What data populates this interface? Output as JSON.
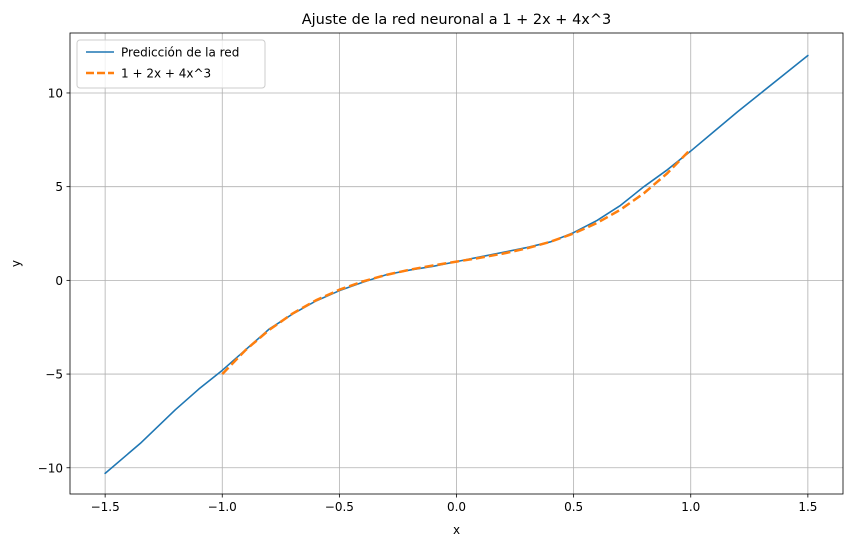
{
  "chart_data": {
    "type": "line",
    "title": "Ajuste de la red neuronal a 1 + 2x + 4x^3",
    "xlabel": "x",
    "ylabel": "y",
    "xlim": [
      -1.65,
      1.65
    ],
    "ylim": [
      -11.4,
      13.2
    ],
    "xticks": [
      -1.5,
      -1.0,
      -0.5,
      0.0,
      0.5,
      1.0,
      1.5
    ],
    "xtick_labels": [
      "−1.5",
      "−1.0",
      "−0.5",
      "0.0",
      "0.5",
      "1.0",
      "1.5"
    ],
    "yticks": [
      -10,
      -5,
      0,
      5,
      10
    ],
    "ytick_labels": [
      "−10",
      "−5",
      "0",
      "5",
      "10"
    ],
    "grid": true,
    "legend_position": "upper-left",
    "series": [
      {
        "name": "Predicción de la red",
        "color": "#1f77b4",
        "style": "solid",
        "x": [
          -1.5,
          -1.35,
          -1.2,
          -1.1,
          -1.0,
          -0.9,
          -0.8,
          -0.7,
          -0.6,
          -0.5,
          -0.4,
          -0.3,
          -0.2,
          -0.1,
          0.0,
          0.1,
          0.2,
          0.3,
          0.4,
          0.5,
          0.6,
          0.7,
          0.8,
          0.9,
          1.0,
          1.1,
          1.2,
          1.3,
          1.4,
          1.5
        ],
        "y": [
          -10.3,
          -8.7,
          -6.9,
          -5.8,
          -4.8,
          -3.7,
          -2.6,
          -1.8,
          -1.1,
          -0.55,
          -0.1,
          0.3,
          0.55,
          0.75,
          1.0,
          1.25,
          1.5,
          1.75,
          2.05,
          2.55,
          3.2,
          4.0,
          5.0,
          5.9,
          6.9,
          7.95,
          9.0,
          10.0,
          11.0,
          12.0
        ]
      },
      {
        "name": "1 + 2x + 4x^3",
        "color": "#ff7f0e",
        "style": "dashed",
        "x": [
          -1.0,
          -0.9,
          -0.8,
          -0.7,
          -0.6,
          -0.5,
          -0.4,
          -0.3,
          -0.2,
          -0.1,
          0.0,
          0.1,
          0.2,
          0.3,
          0.4,
          0.5,
          0.6,
          0.7,
          0.8,
          0.9,
          1.0
        ],
        "y": [
          -5.0,
          -3.716,
          -2.648,
          -1.772,
          -1.064,
          -0.5,
          -0.056,
          0.292,
          0.568,
          0.796,
          1.0,
          1.204,
          1.432,
          1.708,
          2.056,
          2.5,
          3.064,
          3.772,
          4.648,
          5.716,
          7.0
        ]
      }
    ]
  }
}
